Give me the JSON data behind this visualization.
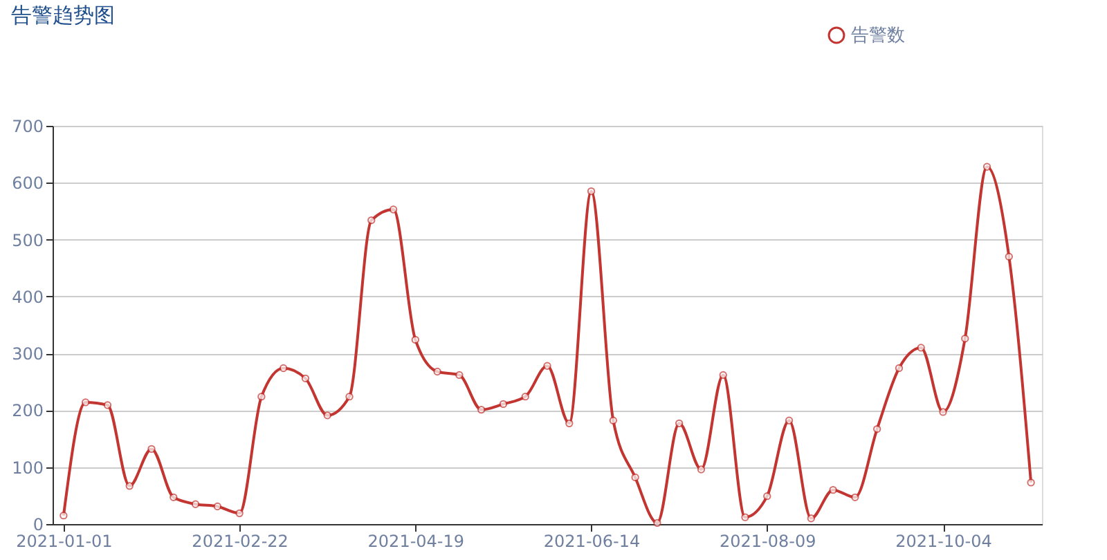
{
  "chart_data": {
    "type": "line",
    "title": "告警趋势图",
    "categories": [
      "2021-01-01",
      null,
      null,
      null,
      null,
      null,
      null,
      null,
      "2021-02-22",
      null,
      null,
      null,
      null,
      null,
      null,
      null,
      "2021-04-19",
      null,
      null,
      null,
      null,
      null,
      null,
      null,
      "2021-06-14",
      null,
      null,
      null,
      null,
      null,
      null,
      null,
      "2021-08-09",
      null,
      null,
      null,
      null,
      null,
      null,
      null,
      "2021-10-04",
      null,
      null,
      null,
      null
    ],
    "series": [
      {
        "name": "告警数",
        "color": "#c23531",
        "values": [
          15,
          214,
          209,
          67,
          132,
          47,
          35,
          31,
          19,
          224,
          274,
          256,
          191,
          224,
          534,
          553,
          324,
          268,
          262,
          201,
          211,
          224,
          278,
          177,
          585,
          182,
          82,
          2,
          177,
          96,
          262,
          12,
          49,
          182,
          10,
          60,
          47,
          167,
          274,
          310,
          197,
          326,
          628,
          470,
          73
        ]
      }
    ],
    "ylim": [
      0,
      700
    ],
    "yticks": [
      0,
      100,
      200,
      300,
      400,
      500,
      600,
      700
    ],
    "grid": "y",
    "legend": "top right",
    "marker": "circle",
    "line_style": "solid"
  }
}
